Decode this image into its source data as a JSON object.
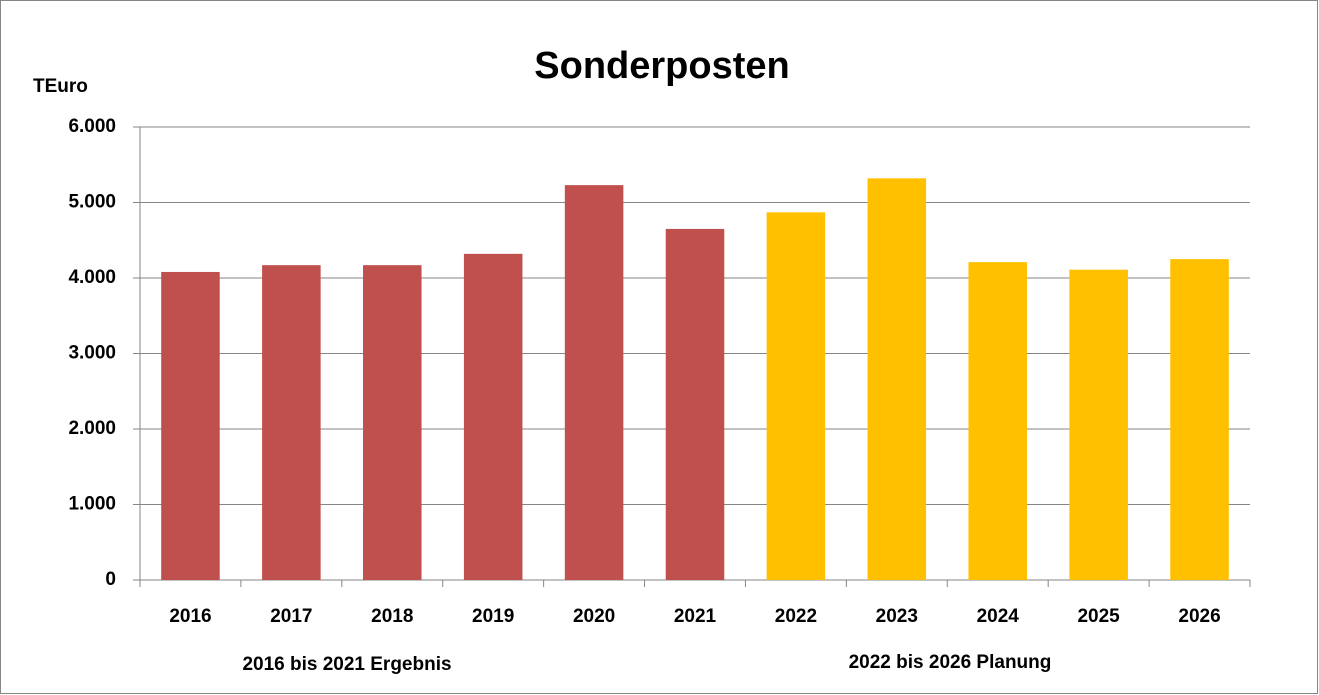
{
  "chart_data": {
    "type": "bar",
    "title": "Sonderposten",
    "y_axis_label": "TEuro",
    "categories": [
      "2016",
      "2017",
      "2018",
      "2019",
      "2020",
      "2021",
      "2022",
      "2023",
      "2024",
      "2025",
      "2026"
    ],
    "values": [
      4080,
      4170,
      4170,
      4320,
      5230,
      4650,
      4870,
      5320,
      4210,
      4110,
      4250
    ],
    "colors": [
      "#c0504d",
      "#c0504d",
      "#c0504d",
      "#c0504d",
      "#c0504d",
      "#c0504d",
      "#ffc000",
      "#ffc000",
      "#ffc000",
      "#ffc000",
      "#ffc000"
    ],
    "annotations": [
      "2016 bis 2021 Ergebnis",
      "2022 bis 2026 Planung"
    ],
    "ylim": [
      0,
      6000
    ],
    "yticks": [
      0,
      {
        "value": 1000,
        "label": "1.000"
      },
      {
        "value": 2000,
        "label": "2.000"
      },
      {
        "value": 3000,
        "label": "3.000"
      },
      {
        "value": 4000,
        "label": "4.000"
      },
      {
        "value": 5000,
        "label": "5.000"
      },
      {
        "value": 6000,
        "label": "6.000"
      }
    ],
    "grid": true
  }
}
